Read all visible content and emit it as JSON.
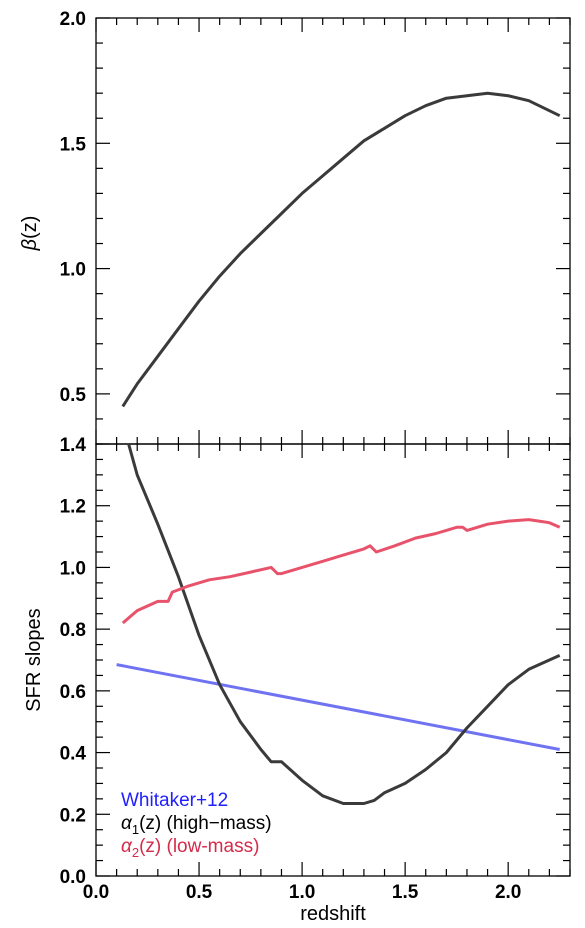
{
  "colors": {
    "whitaker": "#6f73f2",
    "alpha1": "#3a3a3a",
    "alpha2": "#e8536b",
    "beta": "#3a3a3a",
    "legend_whitaker": "#1f1fff",
    "legend_alpha2": "#d62a4a"
  },
  "chart_data": [
    {
      "type": "line",
      "ylabel_greek": "β",
      "ylabel_rest": "(z)",
      "xlim": [
        0.0,
        2.3
      ],
      "ylim": [
        0.3,
        2.0
      ],
      "yticks": [
        "0.5",
        "1.0",
        "1.5",
        "2.0"
      ],
      "grid": false,
      "series": [
        {
          "key": "beta",
          "x": [
            0.13,
            0.2,
            0.3,
            0.4,
            0.5,
            0.6,
            0.7,
            0.8,
            0.9,
            1.0,
            1.1,
            1.2,
            1.3,
            1.4,
            1.5,
            1.6,
            1.7,
            1.8,
            1.9,
            2.0,
            2.1,
            2.2,
            2.25
          ],
          "y": [
            0.45,
            0.54,
            0.65,
            0.76,
            0.87,
            0.97,
            1.06,
            1.14,
            1.22,
            1.3,
            1.37,
            1.44,
            1.51,
            1.56,
            1.61,
            1.65,
            1.68,
            1.69,
            1.7,
            1.69,
            1.67,
            1.63,
            1.61
          ]
        }
      ]
    },
    {
      "type": "line",
      "xlabel": "redshift",
      "ylabel": "SFR slopes",
      "xlim": [
        0.0,
        2.3
      ],
      "ylim": [
        0.0,
        1.4
      ],
      "xticks": [
        "0.0",
        "0.5",
        "1.0",
        "1.5",
        "2.0"
      ],
      "yticks": [
        "0.0",
        "0.2",
        "0.4",
        "0.6",
        "0.8",
        "1.0",
        "1.2",
        "1.4"
      ],
      "grid": false,
      "legend_position": "bottom-left",
      "series": [
        {
          "key": "whitaker",
          "name": "Whitaker+12",
          "x": [
            0.1,
            2.25
          ],
          "y": [
            0.685,
            0.41
          ]
        },
        {
          "key": "alpha1",
          "name_greek": "α",
          "name_sub": "1",
          "name_rest": "(z) (high−mass)",
          "x": [
            0.15,
            0.2,
            0.3,
            0.4,
            0.5,
            0.6,
            0.7,
            0.8,
            0.85,
            0.9,
            1.0,
            1.1,
            1.2,
            1.3,
            1.35,
            1.4,
            1.5,
            1.6,
            1.7,
            1.8,
            1.9,
            2.0,
            2.1,
            2.2,
            2.25
          ],
          "y": [
            1.42,
            1.3,
            1.14,
            0.97,
            0.78,
            0.62,
            0.5,
            0.41,
            0.37,
            0.37,
            0.31,
            0.26,
            0.235,
            0.235,
            0.245,
            0.27,
            0.3,
            0.345,
            0.4,
            0.48,
            0.55,
            0.62,
            0.67,
            0.7,
            0.715
          ]
        },
        {
          "key": "alpha2",
          "name_greek": "α",
          "name_sub": "2",
          "name_rest": "(z) (low-mass)",
          "x": [
            0.13,
            0.2,
            0.3,
            0.35,
            0.37,
            0.45,
            0.55,
            0.65,
            0.75,
            0.85,
            0.88,
            0.9,
            1.0,
            1.1,
            1.2,
            1.3,
            1.33,
            1.36,
            1.45,
            1.55,
            1.65,
            1.75,
            1.78,
            1.8,
            1.9,
            2.0,
            2.1,
            2.15,
            2.2,
            2.25
          ],
          "y": [
            0.82,
            0.86,
            0.89,
            0.89,
            0.92,
            0.94,
            0.96,
            0.97,
            0.985,
            1.0,
            0.98,
            0.98,
            1.0,
            1.02,
            1.04,
            1.06,
            1.07,
            1.05,
            1.07,
            1.095,
            1.11,
            1.13,
            1.13,
            1.12,
            1.14,
            1.15,
            1.155,
            1.15,
            1.145,
            1.13
          ]
        }
      ]
    }
  ]
}
